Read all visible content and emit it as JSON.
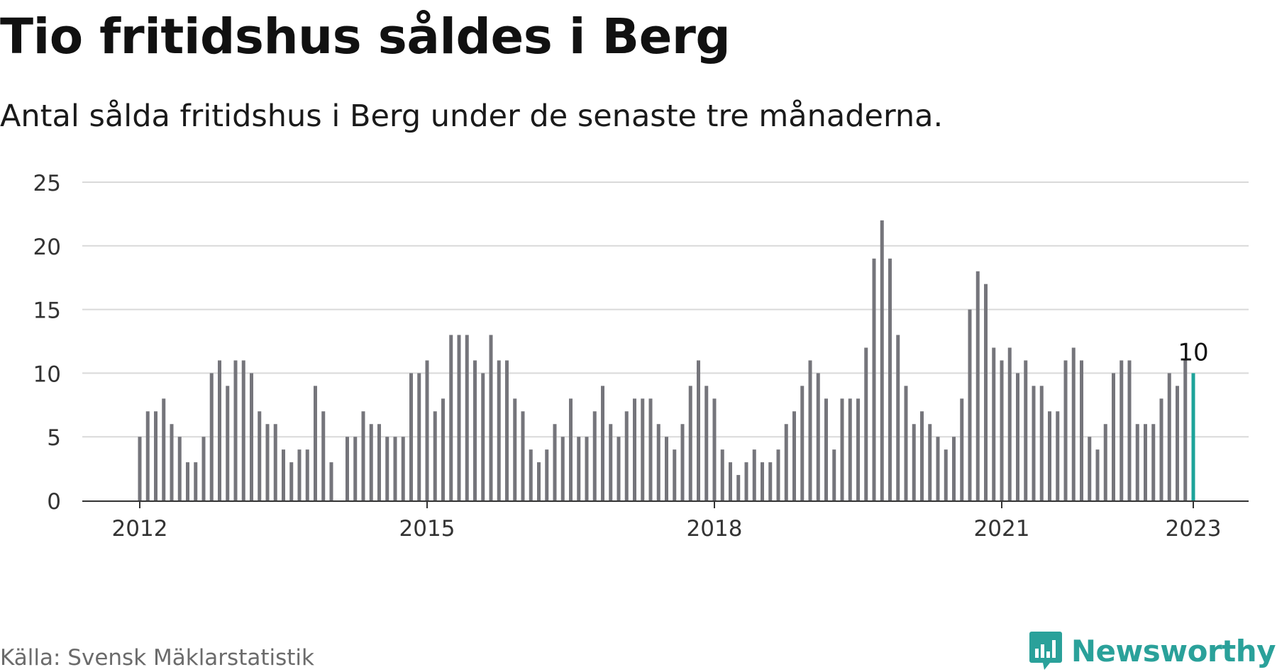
{
  "header": {
    "title": "Tio fritidshus såldes i Berg",
    "subtitle": "Antal sålda fritidshus i Berg under de senaste tre månaderna."
  },
  "footer": {
    "source": "Källa: Svensk Mäklarstatistik",
    "logo_text": "Newsworthy",
    "logo_icon": "bar-chart-speech-bubble-icon"
  },
  "colors": {
    "bar": "#75757b",
    "highlight": "#1da39a",
    "grid": "#d9d9d9",
    "axis": "#333333",
    "brand": "#2aa19a"
  },
  "chart_data": {
    "type": "bar",
    "ylim": [
      0,
      25
    ],
    "yticks": [
      "0",
      "5",
      "10",
      "15",
      "20",
      "25"
    ],
    "xticks": [
      "2012",
      "2015",
      "2018",
      "2021",
      "2023"
    ],
    "grid": true,
    "highlight_label": "10",
    "series": [
      {
        "values": [
          5,
          7,
          7,
          8,
          6,
          5,
          3,
          3,
          5,
          10,
          11,
          9,
          11,
          11,
          10,
          7,
          6,
          6,
          4,
          3,
          4,
          4,
          9,
          7,
          3,
          0,
          5,
          5,
          7,
          6,
          6,
          5,
          5,
          5,
          10,
          10,
          11,
          7,
          8,
          13,
          13,
          13,
          11,
          10,
          13,
          11,
          11,
          8,
          7,
          4,
          3,
          4,
          6,
          5,
          8,
          5,
          5,
          7,
          9,
          6,
          5,
          7,
          8,
          8,
          8,
          6,
          5,
          4,
          6,
          9,
          11,
          9,
          8,
          4,
          3,
          2,
          3,
          4,
          3,
          3,
          4,
          6,
          7,
          9,
          11,
          10,
          8,
          4,
          8,
          8,
          8,
          12,
          19,
          22,
          19,
          13,
          9,
          6,
          7,
          6,
          5,
          4,
          5,
          8,
          15,
          18,
          17,
          12,
          11,
          12,
          10,
          11,
          9,
          9,
          7,
          7,
          11,
          12,
          11,
          5,
          4,
          6,
          10,
          11,
          11,
          6,
          6,
          6,
          8,
          10,
          9,
          11,
          10
        ]
      }
    ]
  }
}
